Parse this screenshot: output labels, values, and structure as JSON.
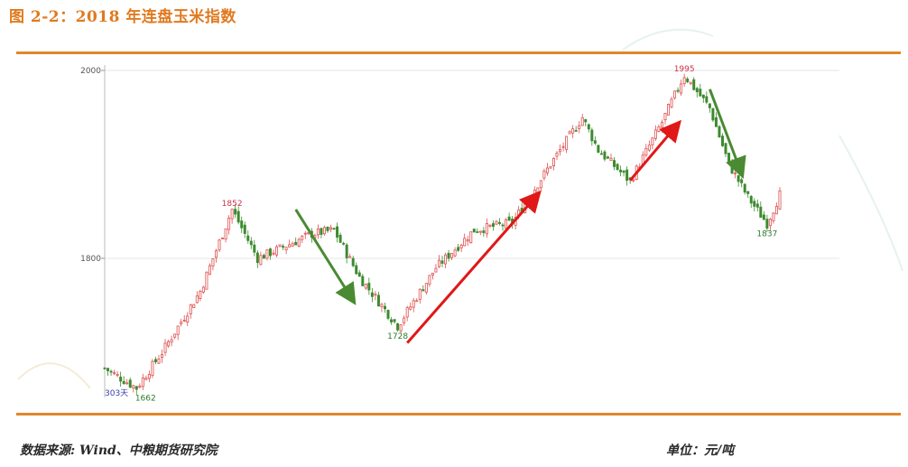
{
  "title": "图 2-2：2018 年连盘玉米指数",
  "source": "数据来源: Wind、中粮期货研究院",
  "unit": "单位：元/吨",
  "colors": {
    "accent": "#e07a1f",
    "up": "#e05050",
    "down": "#3c8a2e",
    "arrow_up": "#e01818",
    "arrow_down": "#4a8a32"
  },
  "chart_data": {
    "type": "candlestick",
    "y_ticks": [
      "2000",
      "1800"
    ],
    "ylim": [
      1640,
      2000
    ],
    "grid": true,
    "days_label": "303天",
    "annotations": [
      {
        "label": "1662",
        "day": 10,
        "value": 1662,
        "kind": "low"
      },
      {
        "label": "1852",
        "day": 40,
        "value": 1852,
        "kind": "high"
      },
      {
        "label": "1728",
        "day": 92,
        "value": 1728,
        "kind": "low"
      },
      {
        "label": "1995",
        "day": 182,
        "value": 1995,
        "kind": "high"
      },
      {
        "label": "1837",
        "day": 208,
        "value": 1837,
        "kind": "low"
      }
    ],
    "close_path": [
      [
        0,
        1683
      ],
      [
        10,
        1662
      ],
      [
        18,
        1700
      ],
      [
        30,
        1765
      ],
      [
        40,
        1852
      ],
      [
        48,
        1800
      ],
      [
        58,
        1815
      ],
      [
        65,
        1826
      ],
      [
        72,
        1830
      ],
      [
        80,
        1780
      ],
      [
        92,
        1728
      ],
      [
        104,
        1790
      ],
      [
        116,
        1830
      ],
      [
        128,
        1838
      ],
      [
        140,
        1900
      ],
      [
        150,
        1950
      ],
      [
        155,
        1915
      ],
      [
        165,
        1882
      ],
      [
        175,
        1945
      ],
      [
        182,
        1995
      ],
      [
        190,
        1960
      ],
      [
        196,
        1900
      ],
      [
        202,
        1865
      ],
      [
        208,
        1837
      ],
      [
        212,
        1868
      ]
    ],
    "trend_arrows": [
      {
        "direction": "down",
        "from": [
          60,
          1852
        ],
        "to": [
          78,
          1755
        ]
      },
      {
        "direction": "up",
        "from": [
          95,
          1710
        ],
        "to": [
          136,
          1868
        ]
      },
      {
        "direction": "up",
        "from": [
          165,
          1883
        ],
        "to": [
          180,
          1943
        ]
      },
      {
        "direction": "down",
        "from": [
          190,
          1980
        ],
        "to": [
          200,
          1890
        ]
      }
    ]
  }
}
